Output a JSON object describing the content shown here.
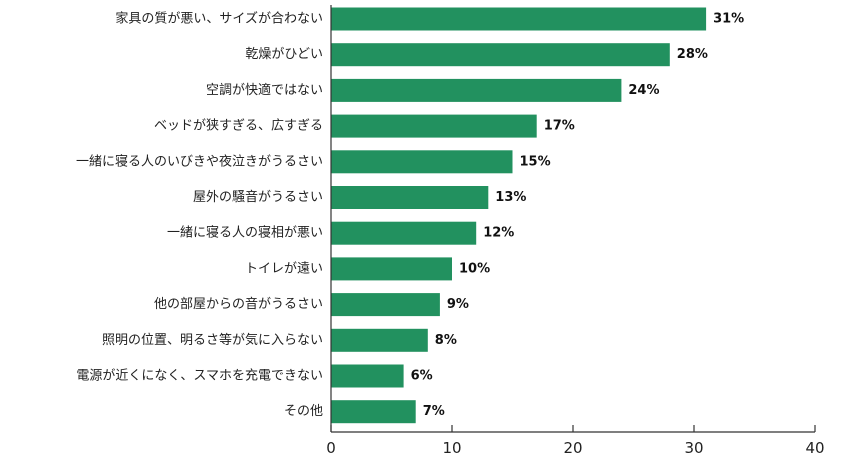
{
  "chart_data": {
    "type": "bar",
    "orientation": "horizontal",
    "categories": [
      "家具の質が悪い、サイズが合わない",
      "乾燥がひどい",
      "空調が快適ではない",
      "ベッドが狭すぎる、広すぎる",
      "一緒に寝る人のいびきや夜泣きがうるさい",
      "屋外の騒音がうるさい",
      "一緒に寝る人の寝相が悪い",
      "トイレが遠い",
      "他の部屋からの音がうるさい",
      "照明の位置、明るさ等が気に入らない",
      "電源が近くになく、スマホを充電できない",
      "その他"
    ],
    "values": [
      31,
      28,
      24,
      17,
      15,
      13,
      12,
      10,
      9,
      8,
      6,
      7
    ],
    "value_labels": [
      "31%",
      "28%",
      "24%",
      "17%",
      "15%",
      "13%",
      "12%",
      "10%",
      "9%",
      "8%",
      "6%",
      "7%"
    ],
    "xlim": [
      0,
      40
    ],
    "xticks": [
      0,
      10,
      20,
      30,
      40
    ],
    "title": "",
    "xlabel": "",
    "ylabel": "",
    "grid": false,
    "bar_color": "#22915f",
    "axis_color": "#333333"
  }
}
